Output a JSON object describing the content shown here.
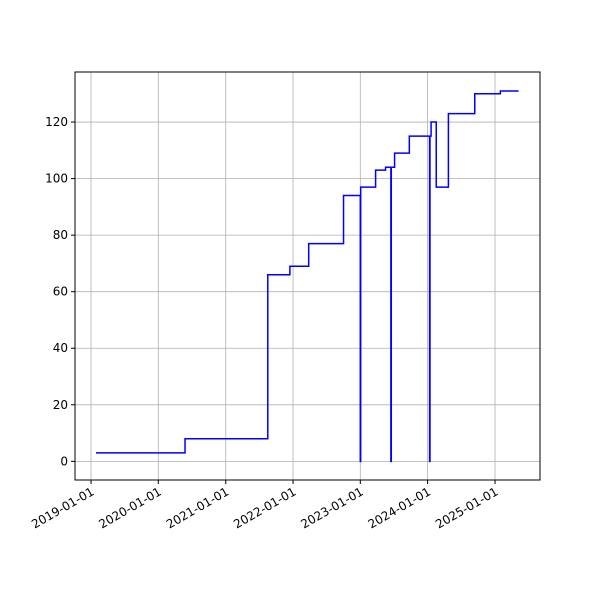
{
  "chart_data": {
    "type": "line",
    "drawstyle": "steps-post",
    "grid": true,
    "x": [
      "2019-01-28",
      "2020-05-25",
      "2021-08-17",
      "2021-12-15",
      "2022-03-27",
      "2022-10-02",
      "2023-01-01",
      "2023-01-03",
      "2023-03-25",
      "2023-05-18",
      "2023-06-16",
      "2023-06-18",
      "2023-07-06",
      "2023-09-24",
      "2024-01-12",
      "2024-01-14",
      "2024-01-20",
      "2024-02-17",
      "2024-04-23",
      "2024-09-13",
      "2025-01-30",
      "2025-05-09"
    ],
    "series": [
      {
        "color": "#0000ff",
        "values": [
          3,
          8,
          66,
          69,
          77,
          94,
          0,
          97,
          103,
          104,
          0,
          104,
          109,
          115,
          0,
          115,
          120,
          97,
          123,
          130,
          131,
          131
        ]
      }
    ],
    "xlim": [
      "2018-10-06",
      "2025-09-02"
    ],
    "xticks": [
      "2019-01-01",
      "2020-01-01",
      "2021-01-01",
      "2022-01-01",
      "2023-01-01",
      "2024-01-01",
      "2025-01-01"
    ],
    "ylim": [
      -6.6,
      137.7
    ],
    "yticks": [
      0,
      20,
      40,
      60,
      80,
      100,
      120
    ]
  }
}
